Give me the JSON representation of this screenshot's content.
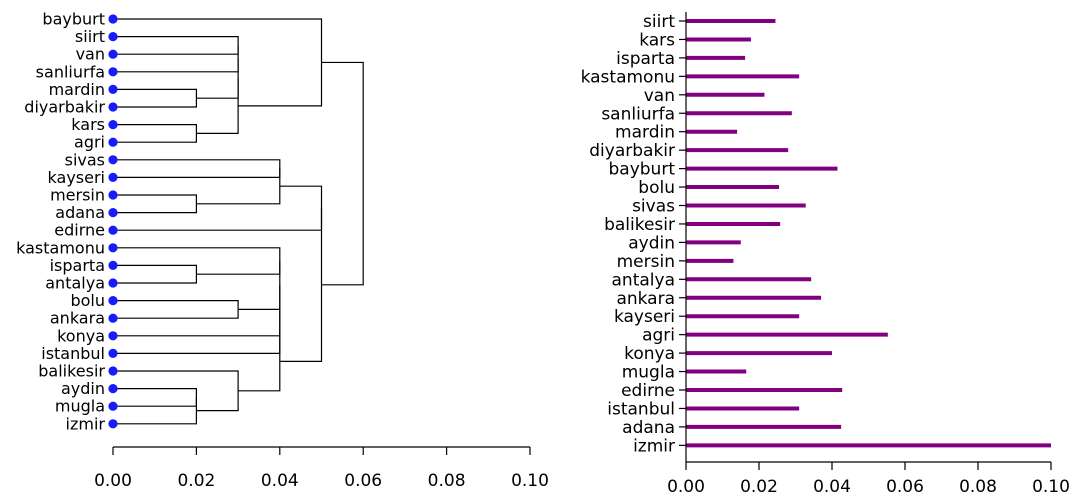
{
  "chart_data": [
    {
      "type": "dendrogram",
      "title": "",
      "xlabel": "",
      "ylabel": "",
      "xlim": [
        0,
        0.1
      ],
      "xticks": [
        "0.00",
        "0.02",
        "0.04",
        "0.06",
        "0.08",
        "0.10"
      ],
      "leaf_color": "#1a1aff",
      "leaves": [
        "bayburt",
        "siirt",
        "van",
        "sanliurfa",
        "mardin",
        "diyarbakir",
        "kars",
        "agri",
        "sivas",
        "kayseri",
        "mersin",
        "adana",
        "edirne",
        "kastamonu",
        "isparta",
        "antalya",
        "bolu",
        "ankara",
        "konya",
        "istanbul",
        "balikesir",
        "aydin",
        "mugla",
        "izmir"
      ],
      "merges": [
        {
          "left": 4,
          "right": 5,
          "height": 0.02
        },
        {
          "left": 6,
          "right": 7,
          "height": 0.02
        },
        {
          "left": 10,
          "right": 11,
          "height": 0.02
        },
        {
          "left": 14,
          "right": 15,
          "height": 0.02
        },
        {
          "left": 21,
          "right": 22,
          "height": 0.02
        },
        {
          "left": 28,
          "right": 23,
          "height": 0.02
        },
        {
          "left": 16,
          "right": 17,
          "height": 0.03
        },
        {
          "left": 20,
          "right": 29,
          "height": 0.03
        },
        {
          "left": 1,
          "right": 2,
          "height": 0.03
        },
        {
          "left": 32,
          "right": 3,
          "height": 0.03
        },
        {
          "left": 33,
          "right": 24,
          "height": 0.03
        },
        {
          "left": 34,
          "right": 25,
          "height": 0.03
        },
        {
          "left": 8,
          "right": 9,
          "height": 0.04
        },
        {
          "left": 36,
          "right": 26,
          "height": 0.04
        },
        {
          "left": 13,
          "right": 27,
          "height": 0.04
        },
        {
          "left": 38,
          "right": 30,
          "height": 0.04
        },
        {
          "left": 39,
          "right": 18,
          "height": 0.04
        },
        {
          "left": 40,
          "right": 19,
          "height": 0.04
        },
        {
          "left": 41,
          "right": 31,
          "height": 0.04
        },
        {
          "left": 0,
          "right": 35,
          "height": 0.05
        },
        {
          "left": 37,
          "right": 12,
          "height": 0.05
        },
        {
          "left": 44,
          "right": 42,
          "height": 0.05
        },
        {
          "left": 43,
          "right": 45,
          "height": 0.06
        }
      ]
    },
    {
      "type": "bar",
      "orientation": "horizontal",
      "title": "",
      "xlabel": "",
      "ylabel": "",
      "xlim": [
        0,
        0.1
      ],
      "xticks": [
        "0.00",
        "0.02",
        "0.04",
        "0.06",
        "0.08",
        "0.10"
      ],
      "bar_color": "#800080",
      "categories": [
        "siirt",
        "kars",
        "isparta",
        "kastamonu",
        "van",
        "sanliurfa",
        "mardin",
        "diyarbakir",
        "bayburt",
        "bolu",
        "sivas",
        "balikesir",
        "aydin",
        "mersin",
        "antalya",
        "ankara",
        "kayseri",
        "agri",
        "konya",
        "mugla",
        "edirne",
        "istanbul",
        "adana",
        "izmir"
      ],
      "values": [
        0.0245,
        0.0178,
        0.0162,
        0.031,
        0.0215,
        0.029,
        0.014,
        0.028,
        0.0415,
        0.0255,
        0.0328,
        0.0258,
        0.015,
        0.013,
        0.0343,
        0.037,
        0.031,
        0.0553,
        0.04,
        0.0165,
        0.0428,
        0.031,
        0.0425,
        0.1
      ]
    }
  ]
}
